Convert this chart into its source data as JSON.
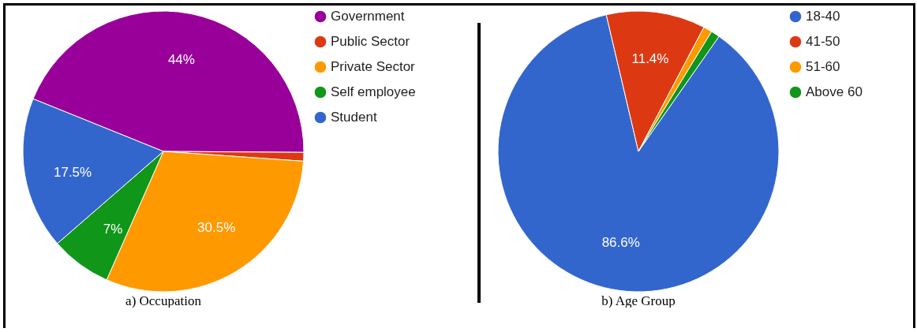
{
  "chart_data": [
    {
      "type": "pie",
      "title": "a) Occupation",
      "categories": [
        "Government",
        "Public Sector",
        "Private Sector",
        "Self employee",
        "Student"
      ],
      "values": [
        44,
        1,
        30.5,
        7,
        17.5
      ],
      "colors": [
        "#990099",
        "#dc3912",
        "#ff9900",
        "#109618",
        "#3366cc"
      ],
      "value_labels": [
        "44%",
        null,
        "30.5%",
        "7%",
        "17.5%"
      ],
      "legend": "right"
    },
    {
      "type": "pie",
      "title": "b) Age Group",
      "categories": [
        "18-40",
        "41-50",
        "51-60",
        "Above 60"
      ],
      "values": [
        86.6,
        11.4,
        1,
        1
      ],
      "colors": [
        "#3366cc",
        "#dc3912",
        "#ff9900",
        "#109618"
      ],
      "value_labels": [
        "86.6%",
        "11.4%",
        null,
        null
      ],
      "legend": "right"
    }
  ]
}
